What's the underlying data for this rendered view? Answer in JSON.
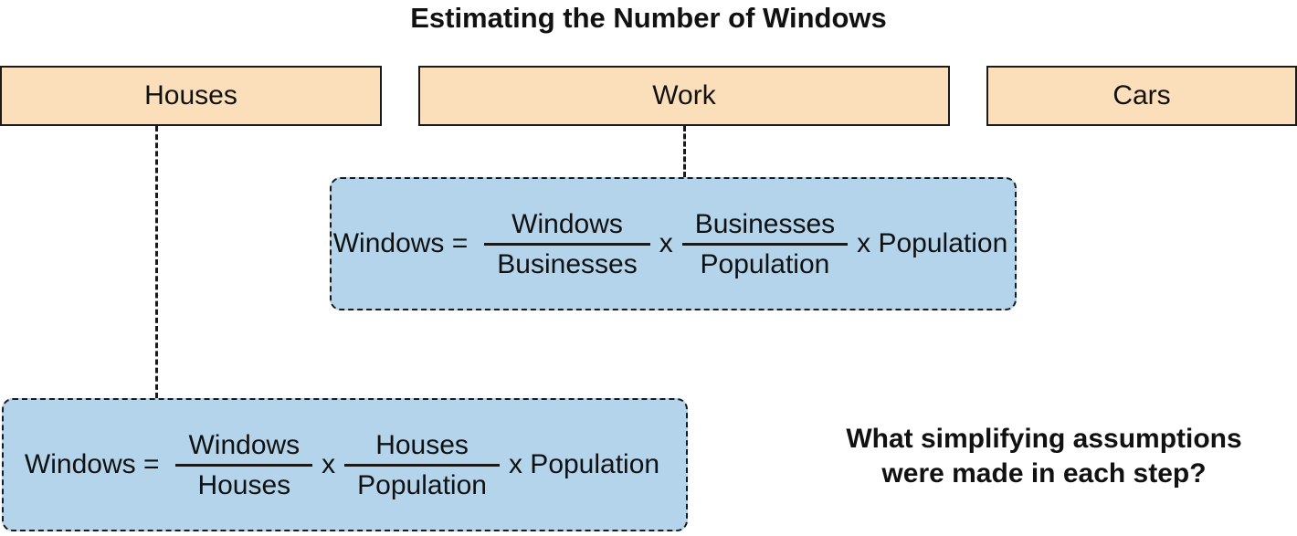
{
  "title": "Estimating the Number of Windows",
  "categories": {
    "houses": "Houses",
    "work": "Work",
    "cars": "Cars"
  },
  "work_formula": {
    "lhs": "Windows =",
    "frac1": {
      "num": "Windows",
      "den": "Businesses"
    },
    "op1": "x",
    "frac2": {
      "num": "Businesses",
      "den": "Population"
    },
    "tail": "x Population"
  },
  "houses_formula": {
    "lhs": "Windows =",
    "frac1": {
      "num": "Windows",
      "den": "Houses"
    },
    "op1": "x",
    "frac2": {
      "num": "Houses",
      "den": "Population"
    },
    "tail": "x Population"
  },
  "question": {
    "line1": "What simplifying assumptions",
    "line2": "were made in each step?"
  },
  "colors": {
    "category_fill": "#fbdfba",
    "formula_fill": "#b3d4ea",
    "stroke": "#1a1a1a"
  }
}
